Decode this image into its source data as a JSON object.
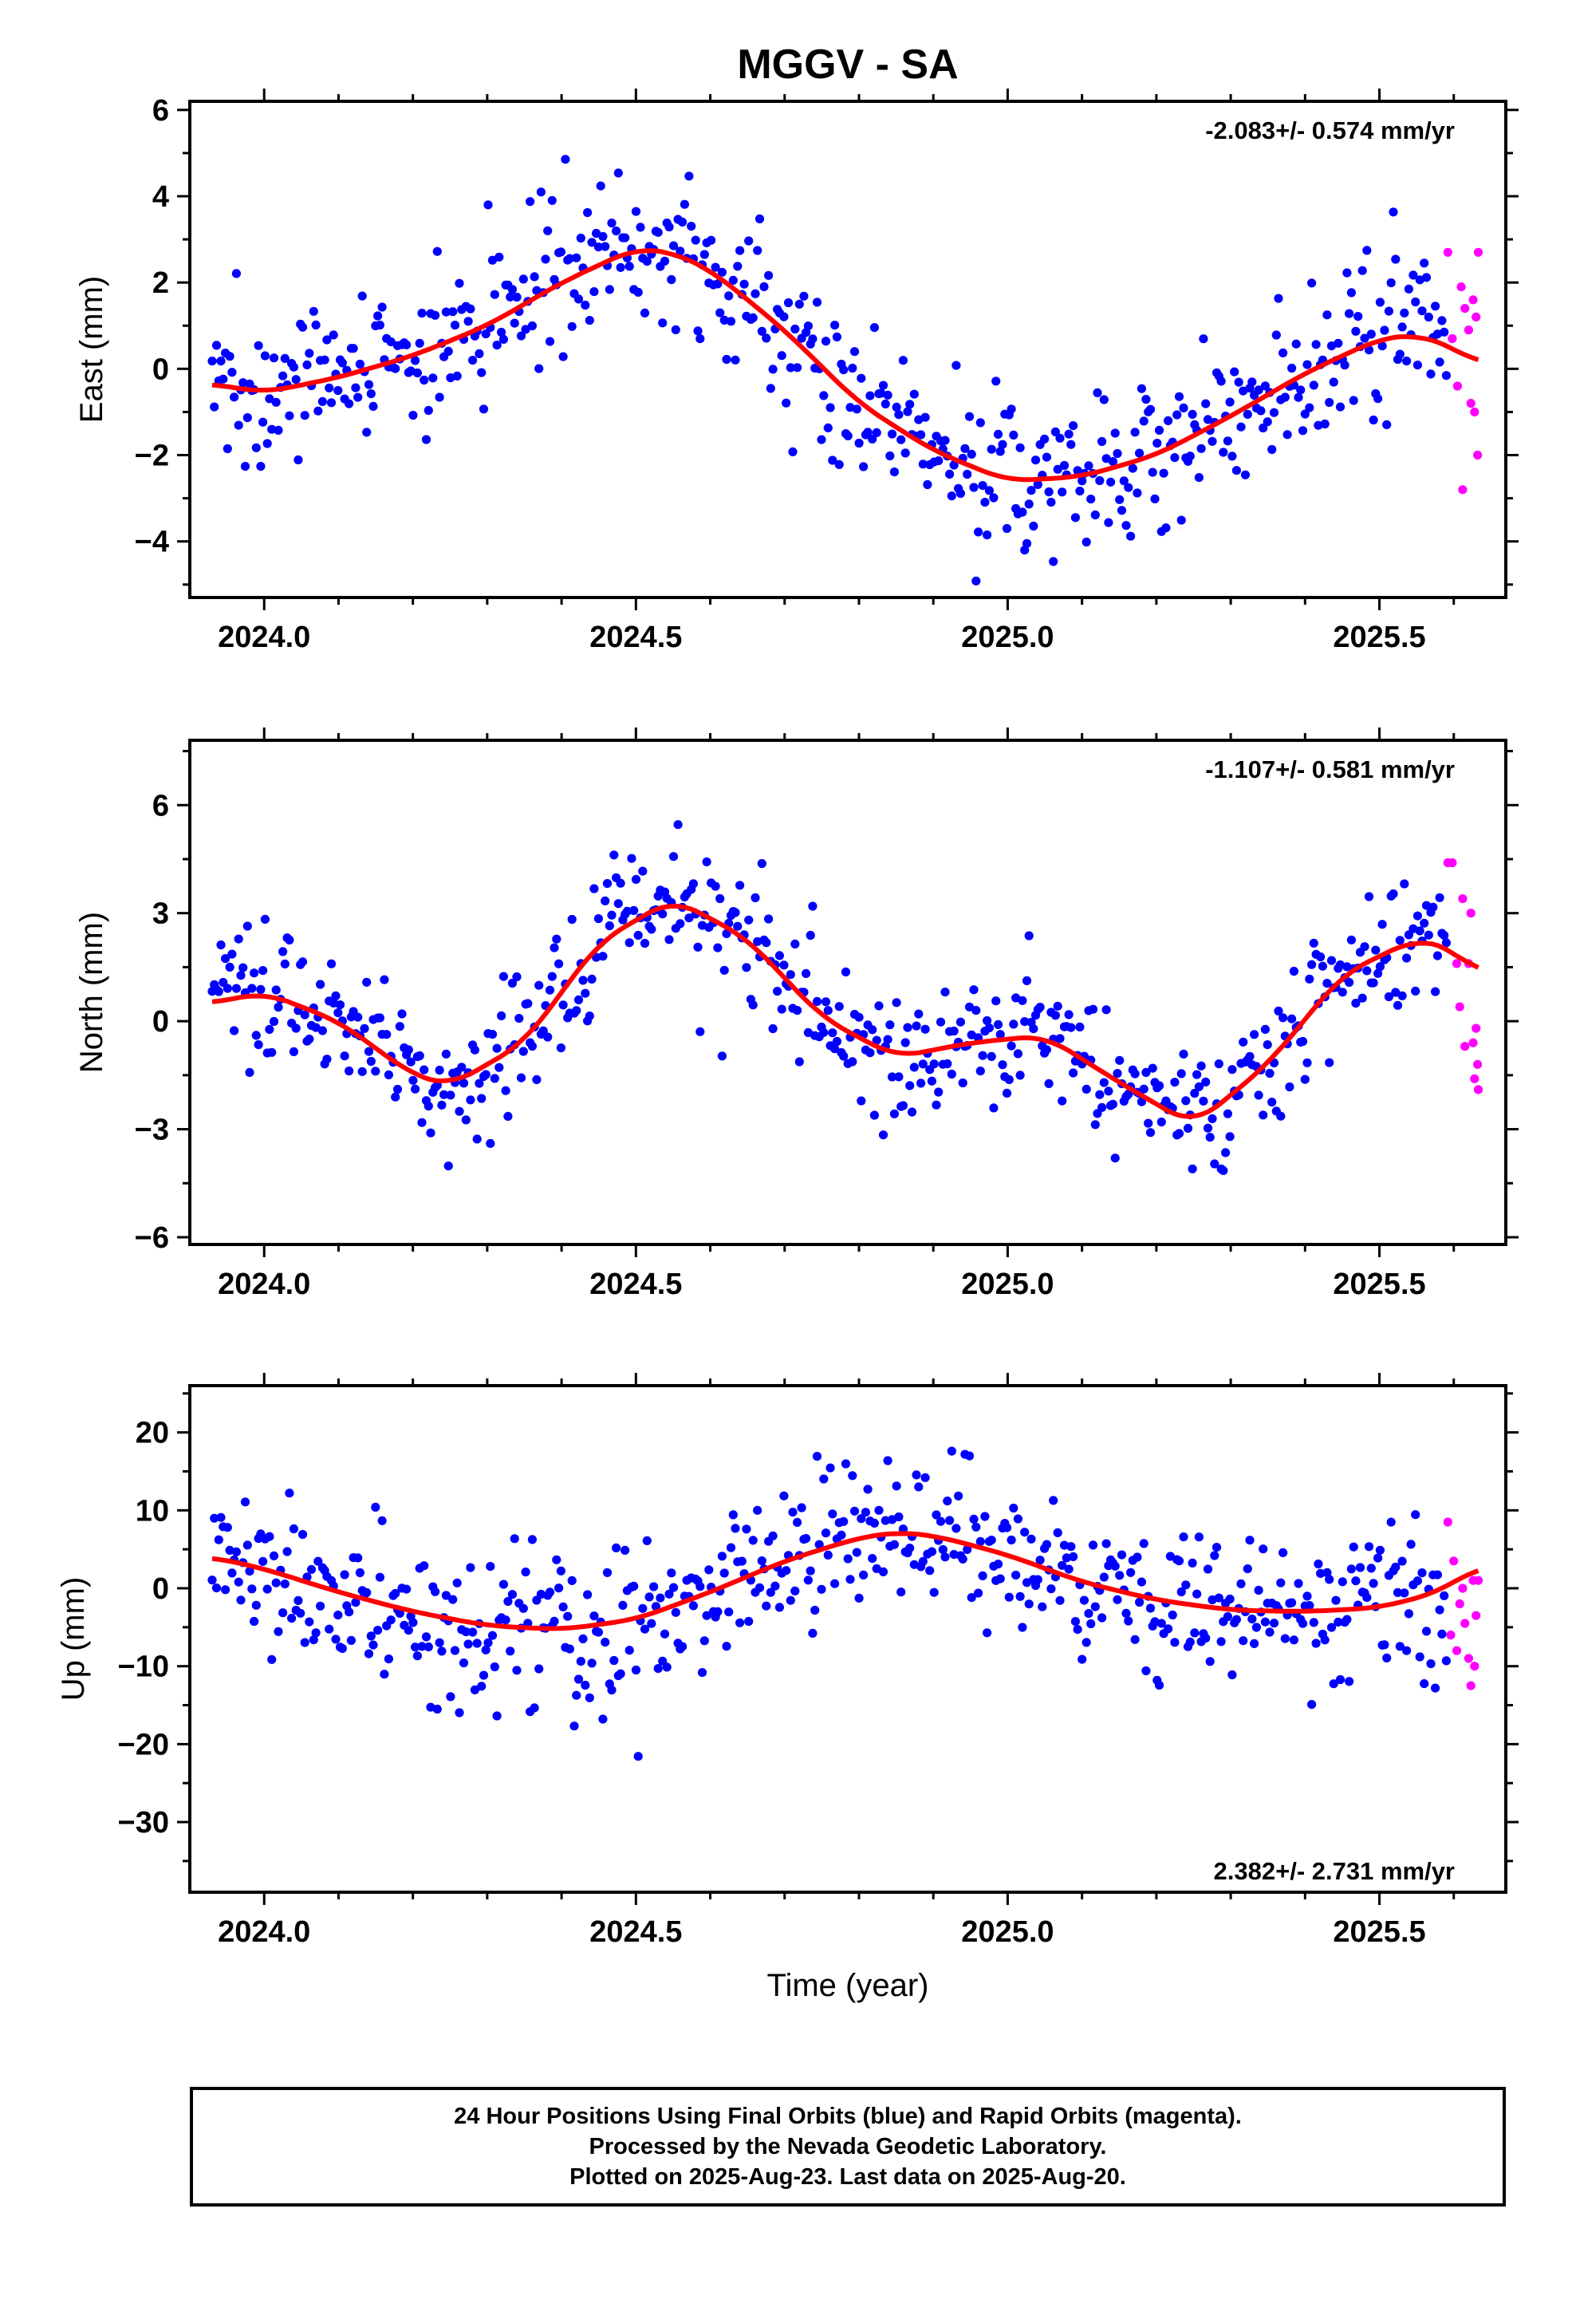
{
  "title": "MGGV - SA",
  "colors": {
    "final": "#0000ff",
    "rapid": "#ff00ff",
    "fit": "#ff0000",
    "frame": "#000000"
  },
  "footer": {
    "line1": "24 Hour Positions Using Final Orbits (blue) and Rapid Orbits (magenta).",
    "line2": "Processed by the Nevada Geodetic Laboratory.",
    "line3": "Plotted on 2025-Aug-23. Last data on 2025-Aug-20."
  },
  "chart_data": [
    {
      "type": "scatter",
      "component": "east",
      "ylabel": "East (mm)",
      "xlabel": "",
      "rate_label": "-2.083+/- 0.574 mm/yr",
      "rate_position": "top-right",
      "xlim": [
        2023.9,
        2025.67
      ],
      "ylim": [
        -5.3,
        6.2
      ],
      "x_ticks": [
        2024.0,
        2024.5,
        2025.0,
        2025.5
      ],
      "x_tick_labels": [
        "2024.0",
        "2024.5",
        "2025.0",
        "2025.5"
      ],
      "y_ticks": [
        -4,
        -2,
        0,
        2,
        4,
        6
      ],
      "y_tick_labels": [
        "−4",
        "−2",
        "0",
        "2",
        "4",
        "6"
      ],
      "data_start": 2023.93,
      "data_end_final": 2025.59,
      "data_end": 2025.633,
      "fit_curve_points": [
        [
          2023.93,
          -0.35
        ],
        [
          2024.0,
          -0.55
        ],
        [
          2024.1,
          -0.2
        ],
        [
          2024.2,
          0.3
        ],
        [
          2024.3,
          1.0
        ],
        [
          2024.4,
          2.0
        ],
        [
          2024.5,
          2.8
        ],
        [
          2024.55,
          2.7
        ],
        [
          2024.6,
          2.3
        ],
        [
          2024.7,
          0.9
        ],
        [
          2024.8,
          -0.8
        ],
        [
          2024.9,
          -1.9
        ],
        [
          2025.0,
          -2.6
        ],
        [
          2025.1,
          -2.5
        ],
        [
          2025.2,
          -2.0
        ],
        [
          2025.3,
          -1.1
        ],
        [
          2025.4,
          -0.1
        ],
        [
          2025.5,
          0.7
        ],
        [
          2025.55,
          0.8
        ],
        [
          2025.6,
          0.5
        ],
        [
          2025.633,
          0.1
        ]
      ],
      "rapid_points": [
        [
          2025.592,
          2.7
        ],
        [
          2025.598,
          0.7
        ],
        [
          2025.605,
          -0.4
        ],
        [
          2025.61,
          1.9
        ],
        [
          2025.612,
          -2.8
        ],
        [
          2025.615,
          1.4
        ],
        [
          2025.62,
          0.9
        ],
        [
          2025.623,
          -0.8
        ],
        [
          2025.626,
          1.6
        ],
        [
          2025.628,
          -1.0
        ],
        [
          2025.63,
          1.2
        ],
        [
          2025.632,
          -2.0
        ],
        [
          2025.633,
          2.7
        ]
      ],
      "scatter_sigma": 0.95
    },
    {
      "type": "scatter",
      "component": "north",
      "ylabel": "North (mm)",
      "xlabel": "",
      "rate_label": "-1.107+/- 0.581 mm/yr",
      "rate_position": "top-right",
      "xlim": [
        2023.9,
        2025.67
      ],
      "ylim": [
        -6.2,
        7.8
      ],
      "x_ticks": [
        2024.0,
        2024.5,
        2025.0,
        2025.5
      ],
      "x_tick_labels": [
        "2024.0",
        "2024.5",
        "2025.0",
        "2025.5"
      ],
      "y_ticks": [
        -6,
        -3,
        0,
        3,
        6
      ],
      "y_tick_labels": [
        "−6",
        "−3",
        "0",
        "3",
        "6"
      ],
      "data_start": 2023.93,
      "data_end_final": 2025.59,
      "data_end": 2025.633,
      "fit_curve_points": [
        [
          2023.93,
          0.5
        ],
        [
          2024.0,
          0.8
        ],
        [
          2024.1,
          0.0
        ],
        [
          2024.2,
          -1.5
        ],
        [
          2024.25,
          -1.8
        ],
        [
          2024.35,
          -0.6
        ],
        [
          2024.45,
          2.2
        ],
        [
          2024.55,
          3.4
        ],
        [
          2024.65,
          2.3
        ],
        [
          2024.75,
          0.1
        ],
        [
          2024.85,
          -1.0
        ],
        [
          2024.95,
          -0.6
        ],
        [
          2025.05,
          -0.4
        ],
        [
          2025.15,
          -1.7
        ],
        [
          2025.25,
          -2.9
        ],
        [
          2025.35,
          -1.2
        ],
        [
          2025.45,
          1.3
        ],
        [
          2025.55,
          2.3
        ],
        [
          2025.6,
          2.0
        ],
        [
          2025.633,
          1.3
        ]
      ],
      "rapid_points": [
        [
          2025.592,
          4.4
        ],
        [
          2025.598,
          4.4
        ],
        [
          2025.604,
          1.6
        ],
        [
          2025.608,
          0.4
        ],
        [
          2025.612,
          3.4
        ],
        [
          2025.615,
          -0.7
        ],
        [
          2025.62,
          1.6
        ],
        [
          2025.623,
          3.0
        ],
        [
          2025.626,
          -0.6
        ],
        [
          2025.628,
          -1.6
        ],
        [
          2025.63,
          -0.2
        ],
        [
          2025.632,
          -1.2
        ],
        [
          2025.633,
          -1.9
        ]
      ],
      "scatter_sigma": 0.95
    },
    {
      "type": "scatter",
      "component": "up",
      "ylabel": "Up (mm)",
      "xlabel": "Time (year)",
      "rate_label": "2.382+/- 2.731 mm/yr",
      "rate_position": "bottom-right",
      "xlim": [
        2023.9,
        2025.67
      ],
      "ylim": [
        -39,
        26
      ],
      "x_ticks": [
        2024.0,
        2024.5,
        2025.0,
        2025.5
      ],
      "x_tick_labels": [
        "2024.0",
        "2024.5",
        "2025.0",
        "2025.5"
      ],
      "y_ticks": [
        -30,
        -20,
        -10,
        0,
        10,
        20
      ],
      "y_tick_labels": [
        "−30",
        "−20",
        "−10",
        "0",
        "10",
        "20"
      ],
      "data_start": 2023.93,
      "data_end_final": 2025.59,
      "data_end": 2025.633,
      "fit_curve_points": [
        [
          2023.93,
          4.0
        ],
        [
          2024.0,
          2.5
        ],
        [
          2024.1,
          -0.5
        ],
        [
          2024.2,
          -3.0
        ],
        [
          2024.3,
          -4.8
        ],
        [
          2024.4,
          -5.3
        ],
        [
          2024.5,
          -4.0
        ],
        [
          2024.6,
          -0.5
        ],
        [
          2024.7,
          3.5
        ],
        [
          2024.8,
          6.5
        ],
        [
          2024.85,
          7.2
        ],
        [
          2024.9,
          6.8
        ],
        [
          2025.0,
          4.3
        ],
        [
          2025.1,
          0.8
        ],
        [
          2025.2,
          -1.5
        ],
        [
          2025.3,
          -2.8
        ],
        [
          2025.4,
          -3.0
        ],
        [
          2025.5,
          -2.5
        ],
        [
          2025.58,
          -0.5
        ],
        [
          2025.633,
          2.8
        ]
      ],
      "rapid_points": [
        [
          2025.592,
          8.5
        ],
        [
          2025.596,
          -6.0
        ],
        [
          2025.6,
          3.5
        ],
        [
          2025.604,
          -8.0
        ],
        [
          2025.608,
          -2.0
        ],
        [
          2025.612,
          0.0
        ],
        [
          2025.615,
          -4.5
        ],
        [
          2025.62,
          -9.0
        ],
        [
          2025.623,
          -12.5
        ],
        [
          2025.626,
          1.0
        ],
        [
          2025.628,
          -10.0
        ],
        [
          2025.63,
          -3.5
        ],
        [
          2025.633,
          1.0
        ]
      ],
      "scatter_sigma": 5.0
    }
  ]
}
